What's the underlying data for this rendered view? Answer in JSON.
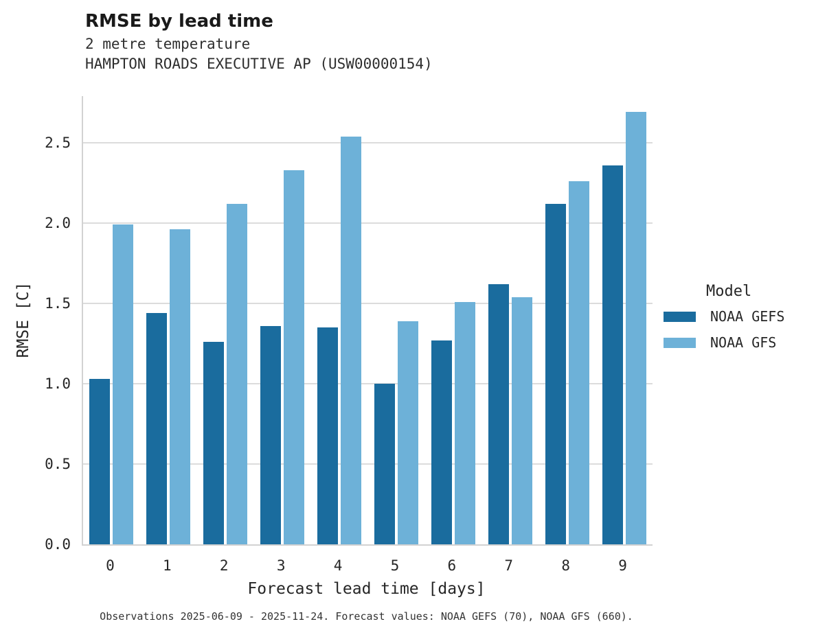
{
  "title": "RMSE by lead time",
  "subtitle1": "2 metre temperature",
  "subtitle2": "HAMPTON ROADS EXECUTIVE AP (USW00000154)",
  "caption": "Observations 2025-06-09 - 2025-11-24. Forecast values: NOAA GEFS (70), NOAA GFS (660).",
  "chart_data": {
    "type": "bar",
    "title": "RMSE by lead time",
    "subtitle": [
      "2 metre temperature",
      "HAMPTON ROADS EXECUTIVE AP (USW00000154)"
    ],
    "categories": [
      "0",
      "1",
      "2",
      "3",
      "4",
      "5",
      "6",
      "7",
      "8",
      "9"
    ],
    "series": [
      {
        "name": "NOAA GEFS",
        "color": "#1a6c9e",
        "values": [
          1.03,
          1.44,
          1.26,
          1.36,
          1.35,
          1.0,
          1.27,
          1.62,
          2.12,
          2.36
        ]
      },
      {
        "name": "NOAA GFS",
        "color": "#6db1d8",
        "values": [
          1.99,
          1.96,
          2.12,
          2.33,
          2.54,
          1.39,
          1.51,
          1.54,
          2.26,
          2.69
        ]
      }
    ],
    "xlabel": "Forecast lead time [days]",
    "ylabel": "RMSE [C]",
    "ylim": [
      0,
      2.79
    ],
    "yticks": [
      "0.0",
      "0.5",
      "1.0",
      "1.5",
      "2.0",
      "2.5"
    ],
    "grid": true,
    "grid_color": "#dcdcdc",
    "legend_title": "Model",
    "legend_position": "right"
  }
}
